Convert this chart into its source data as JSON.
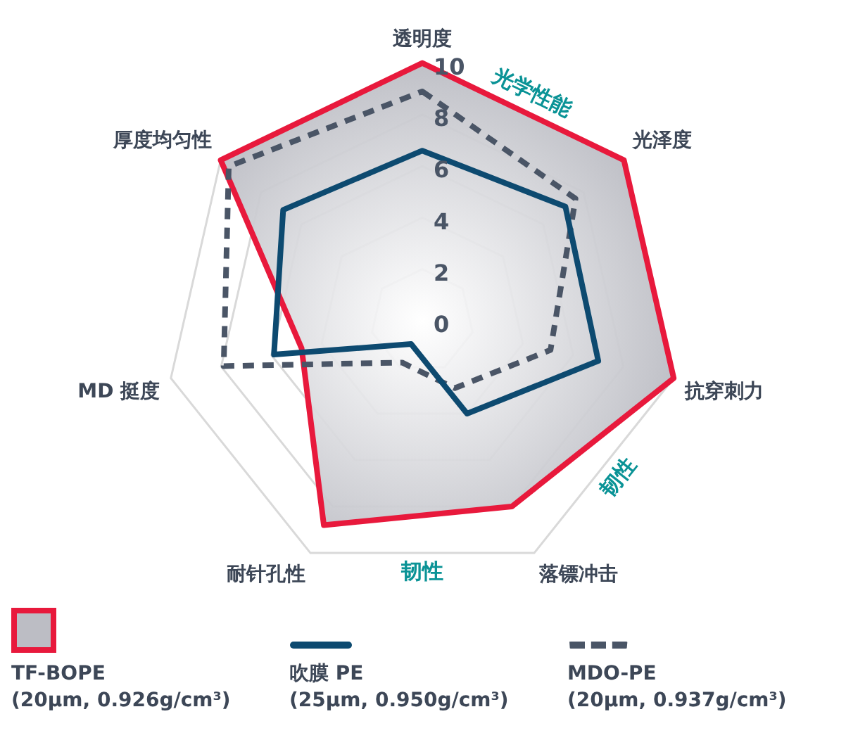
{
  "chart_data": {
    "type": "radar",
    "categories": [
      "透明度",
      "光泽度",
      "抗穿刺力",
      "落镖冲击",
      "耐针孔性",
      "MD 挺度",
      "厚度均匀性"
    ],
    "ylim": [
      0,
      10
    ],
    "yticks": [
      0,
      2,
      4,
      6,
      8,
      10
    ],
    "grid": true,
    "legend": "bottom",
    "marker": "none",
    "annotations": [
      "光学性能",
      "韧性",
      "韧性"
    ],
    "series": [
      {
        "name": "TF-BOPE (20µm, 0.926g/cm³)",
        "type": "area",
        "color": "#e8193c",
        "values": [
          10,
          10,
          10,
          8,
          8.8,
          4.8,
          10
        ]
      },
      {
        "name": "吹膜 PE (25µm, 0.950g/cm³)",
        "type": "radar",
        "color": "#0d4a70",
        "line_style": "solid",
        "values": [
          6.6,
          7.1,
          7,
          4,
          1,
          5.9,
          6.9
        ]
      },
      {
        "name": "MDO-PE (20µm, 0.937g/cm³)",
        "type": "radar",
        "color": "#4a5566",
        "line_style": "dashed",
        "values": [
          8.9,
          7.6,
          5.1,
          2.9,
          1.8,
          7.9,
          9.6
        ]
      }
    ]
  }
}
